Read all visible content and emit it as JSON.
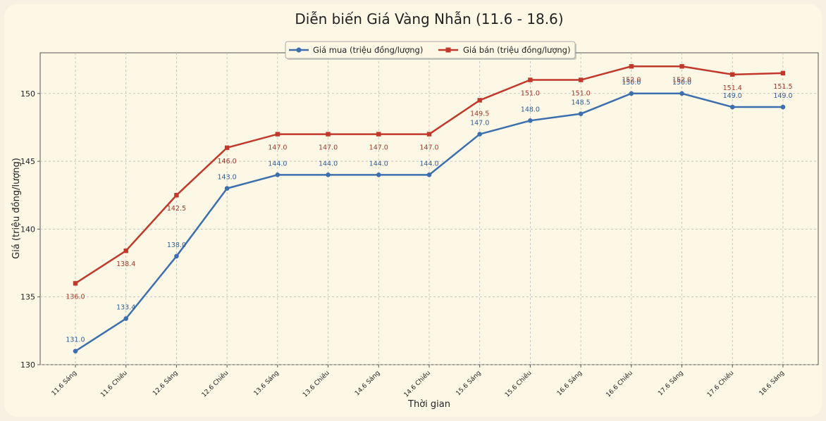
{
  "chart_data": {
    "type": "line",
    "title": "Diễn biến Giá Vàng Nhẫn (11.6 - 18.6)",
    "xlabel": "Thời gian",
    "ylabel": "Giá (triệu đồng/lượng)",
    "ylim": [
      130,
      153
    ],
    "yticks": [
      130,
      135,
      140,
      145,
      150
    ],
    "grid": true,
    "legend_position": "top-center",
    "categories": [
      "11.6 Sáng",
      "11.6 Chiều",
      "12.6 Sáng",
      "12.6 Chiều",
      "13.6 Sáng",
      "13.6 Chiều",
      "14.6 Sáng",
      "14.6 Chiều",
      "15.6 Sáng",
      "15.6 Chiều",
      "16.6 Sáng",
      "16.6 Chiều",
      "17.6 Sáng",
      "17.6 Chiều",
      "18.6 Sáng"
    ],
    "series": [
      {
        "name": "Giá mua (triệu đồng/lượng)",
        "color": "#3d6fae",
        "marker": "circle",
        "values": [
          131.0,
          133.4,
          138.0,
          143.0,
          144.0,
          144.0,
          144.0,
          144.0,
          147.0,
          148.0,
          148.5,
          150.0,
          150.0,
          149.0,
          149.0
        ]
      },
      {
        "name": "Giá bán (triệu đồng/lượng)",
        "color": "#c0392b",
        "marker": "square",
        "values": [
          136.0,
          138.4,
          142.5,
          146.0,
          147.0,
          147.0,
          147.0,
          147.0,
          149.5,
          151.0,
          151.0,
          152.0,
          152.0,
          151.4,
          151.5
        ]
      }
    ]
  }
}
